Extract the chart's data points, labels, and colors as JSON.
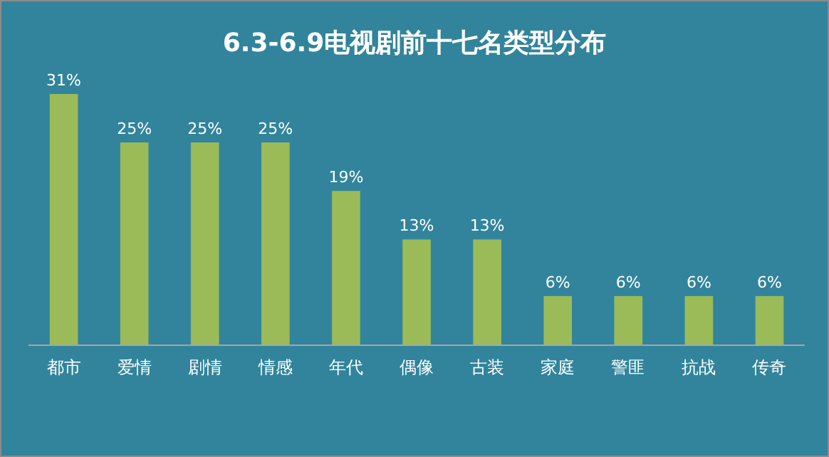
{
  "chart_data": {
    "type": "bar",
    "title": "6.3-6.9电视剧前十七名类型分布",
    "categories": [
      "都市",
      "爱情",
      "剧情",
      "情感",
      "年代",
      "偶像",
      "古装",
      "家庭",
      "警匪",
      "抗战",
      "传奇"
    ],
    "values": [
      31,
      25,
      25,
      25,
      19,
      13,
      13,
      6,
      6,
      6,
      6
    ],
    "value_labels": [
      "31%",
      "25%",
      "25%",
      "25%",
      "19%",
      "13%",
      "13%",
      "6%",
      "6%",
      "6%",
      "6%"
    ],
    "color": "#9bbb59"
  }
}
